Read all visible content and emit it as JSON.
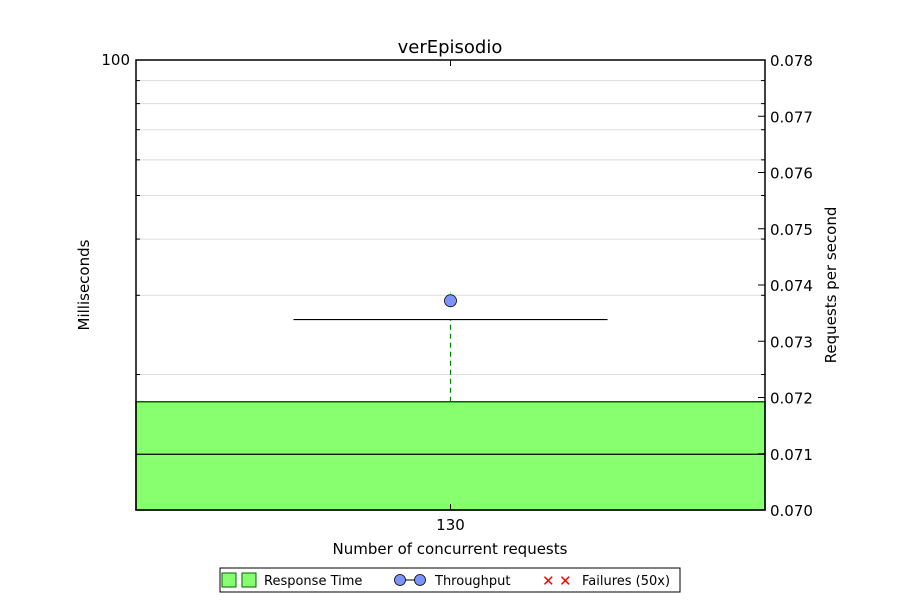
{
  "chart_data": {
    "type": "box",
    "title": "verEpisodio",
    "xlabel": "Number of concurrent requests",
    "ylabel_left": "Milliseconds",
    "ylabel_right": "Requests per second",
    "categories": [
      "130"
    ],
    "left_axis": {
      "scale": "log",
      "min": 10,
      "max": 100,
      "tick_labels": [
        {
          "value": 100,
          "label": "100"
        }
      ],
      "grid": true
    },
    "right_axis": {
      "scale": "linear",
      "min": 0.07,
      "max": 0.078,
      "ticks": [
        0.07,
        0.071,
        0.072,
        0.073,
        0.074,
        0.075,
        0.076,
        0.077,
        0.078
      ],
      "tick_labels": [
        "0.070",
        "0.071",
        "0.072",
        "0.073",
        "0.074",
        "0.075",
        "0.076",
        "0.077",
        "0.078"
      ]
    },
    "response_time_box": {
      "q1": 10,
      "median": 13.3,
      "q3": 17.4,
      "whisker_high": 26.5,
      "outliers": [
        28.6,
        29.3,
        30.1
      ]
    },
    "throughput": [
      0.07372
    ],
    "failures": [],
    "legend": {
      "placement": "bottom-center",
      "entries": [
        {
          "label": "Response Time",
          "marker": "green-box"
        },
        {
          "label": "Throughput",
          "marker": "blue-circle-line"
        },
        {
          "label": "Failures (50x)",
          "marker": "red-x"
        }
      ]
    },
    "colors": {
      "box_fill": "#88ff6e",
      "box_edge": "#006400",
      "whisker": "#008000",
      "outlier": "#90ee90",
      "throughput": "#7b93ff",
      "failures": "#ff0000",
      "grid": "#dddddd"
    }
  }
}
